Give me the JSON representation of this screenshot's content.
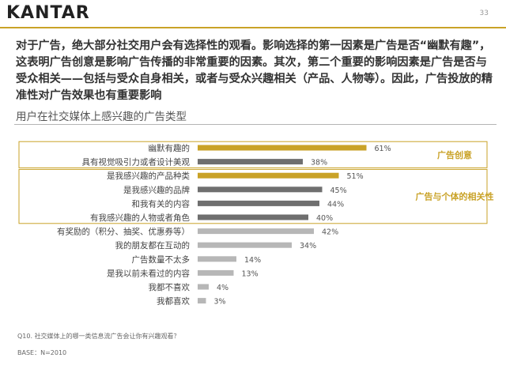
{
  "header": {
    "logo_text": "KANTAR",
    "page_number": "33"
  },
  "headline": "对于广告，绝大部分社交用户会有选择性的观看。影响选择的第一因素是广告是否“幽默有趣”，这表明广告创意是影响广告传播的非常重要的因素。其次，第二个重要的影响因素是广告是否与受众相关——包括与受众自身相关，或者与受众兴趣相关（产品、人物等）。因此，广告投放的精准性对广告效果也有重要影响",
  "colors": {
    "gold": "#c9a227",
    "dark_gray": "#6f6f6f",
    "light_gray": "#b7b7b7",
    "accent_text": "#c9a227"
  },
  "chart_data": {
    "type": "bar",
    "orientation": "horizontal",
    "title": "用户在社交媒体上感兴趣的广告类型",
    "categories": [
      "幽默有趣的",
      "具有视觉吸引力或者设计美观",
      "是我感兴趣的产品种类",
      "是我感兴趣的品牌",
      "和我有关的内容",
      "有我感兴趣的人物或者角色",
      "有奖励的（积分、抽奖、优惠券等）",
      "我的朋友都在互动的",
      "广告数量不太多",
      "是我以前未看过的内容",
      "我都不喜欢",
      "我都喜欢"
    ],
    "values": [
      61,
      38,
      51,
      45,
      44,
      40,
      42,
      34,
      14,
      13,
      4,
      3
    ],
    "value_labels": [
      "61%",
      "38%",
      "51%",
      "45%",
      "44%",
      "40%",
      "42%",
      "34%",
      "14%",
      "13%",
      "4%",
      "3%"
    ],
    "bar_colors": [
      "gold",
      "dark_gray",
      "gold",
      "dark_gray",
      "dark_gray",
      "dark_gray",
      "light_gray",
      "light_gray",
      "light_gray",
      "light_gray",
      "light_gray",
      "light_gray"
    ],
    "xlim": [
      0,
      100
    ],
    "groups": [
      {
        "label": "广告创意",
        "first": 0,
        "last": 1
      },
      {
        "label": "广告与个体的相关性",
        "first": 2,
        "last": 5
      }
    ]
  },
  "footnotes": {
    "question": "Q10. 社交媒体上的哪一类信息流广告会让你有兴趣观看？",
    "base": "BASE：N=2010"
  }
}
